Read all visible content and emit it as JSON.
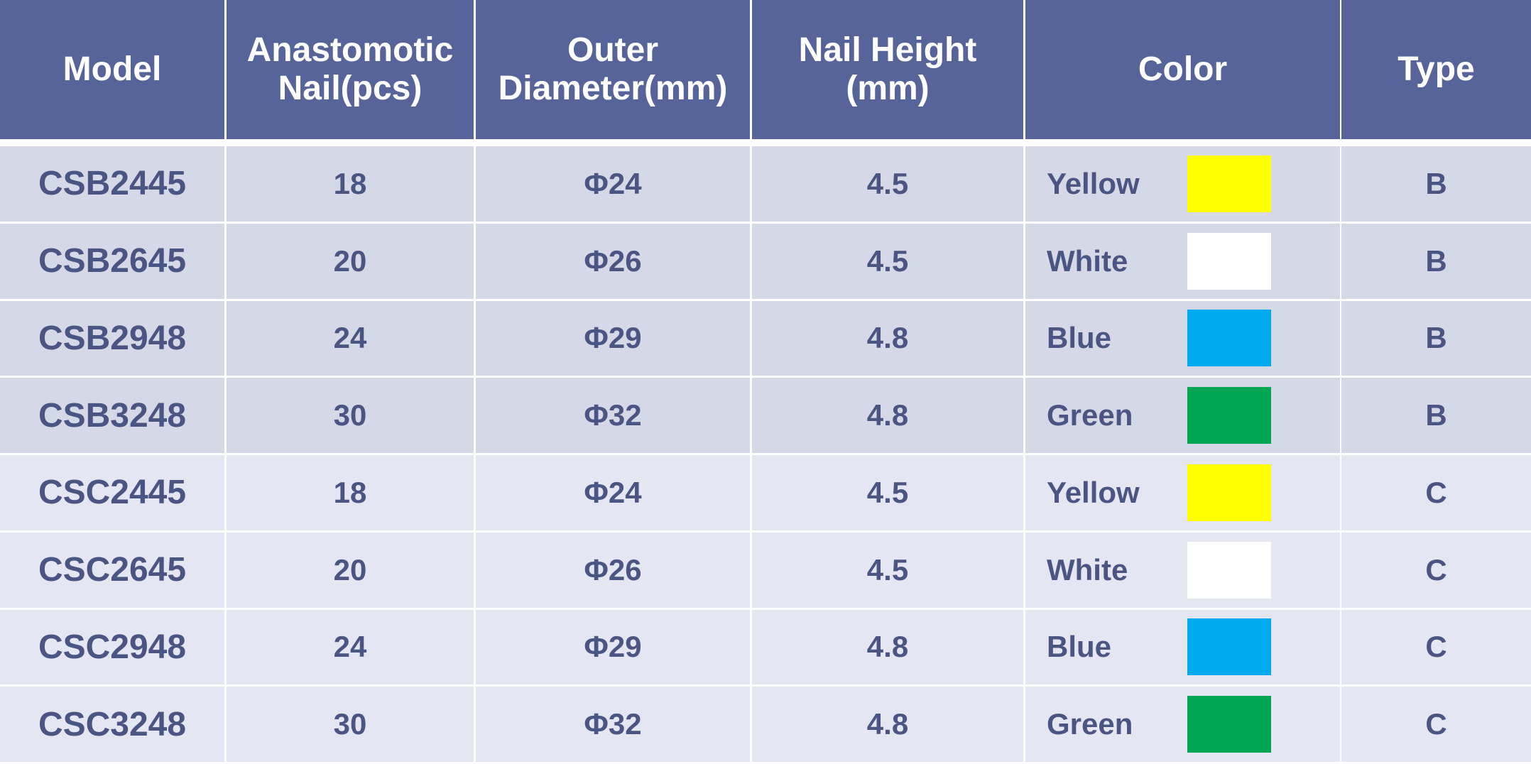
{
  "table": {
    "header": [
      "Model",
      "Anastomotic Nail(pcs)",
      "Outer Diameter(mm)",
      "Nail Height (mm)",
      "Color",
      "Type"
    ],
    "rows": [
      [
        "CSB2445",
        "18",
        "Φ24",
        "4.5",
        "Yellow",
        "B"
      ],
      [
        "CSB2645",
        "20",
        "Φ26",
        "4.5",
        "White",
        "B"
      ],
      [
        "CSB2948",
        "24",
        "Φ29",
        "4.8",
        "Blue",
        "B"
      ],
      [
        "CSB3248",
        "30",
        "Φ32",
        "4.8",
        "Green",
        "B"
      ],
      [
        "CSC2445",
        "18",
        "Φ24",
        "4.5",
        "Yellow",
        "C"
      ],
      [
        "CSC2645",
        "20",
        "Φ26",
        "4.5",
        "White",
        "C"
      ],
      [
        "CSC2948",
        "24",
        "Φ29",
        "4.8",
        "Blue",
        "C"
      ],
      [
        "CSC3248",
        "30",
        "Φ32",
        "4.8",
        "Green",
        "C"
      ]
    ],
    "swatch_colors": [
      "#ffff00",
      "#ffffff",
      "#00aaef",
      "#00a651",
      "#ffff00",
      "#ffffff",
      "#00aaef",
      "#00a651"
    ]
  }
}
